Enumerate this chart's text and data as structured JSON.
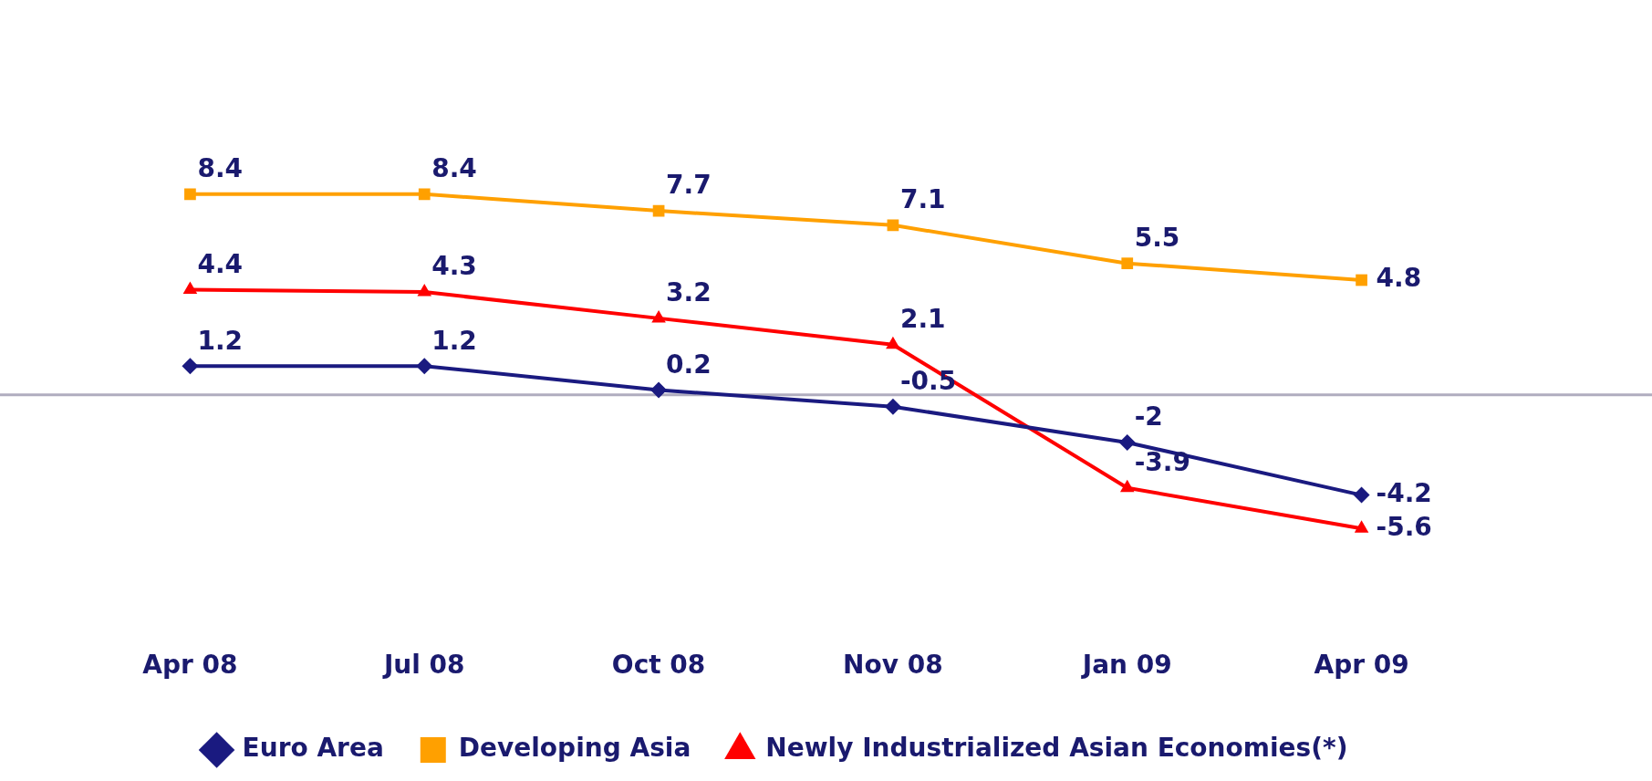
{
  "chart_data": {
    "type": "line",
    "categories": [
      "Apr 08",
      "Jul 08",
      "Oct 08",
      "Nov 08",
      "Jan 09",
      "Apr 09"
    ],
    "series": [
      {
        "name": "Euro Area",
        "color": "#1a1a80",
        "marker": "diamond",
        "values": [
          1.2,
          1.2,
          0.2,
          -0.5,
          -2,
          -4.2
        ]
      },
      {
        "name": "Developing Asia",
        "color": "#ffa000",
        "marker": "square",
        "values": [
          8.4,
          8.4,
          7.7,
          7.1,
          5.5,
          4.8
        ]
      },
      {
        "name": "Newly Industrialized Asian Economies(*)",
        "color": "#ff0000",
        "marker": "triangle",
        "values": [
          4.4,
          4.3,
          3.2,
          2.1,
          -3.9,
          -5.6
        ]
      }
    ],
    "ref_lines": [
      {
        "axis": "y",
        "value": 0,
        "color": "#b0adbf"
      }
    ],
    "data_labels": true,
    "grid": false,
    "legend": "bottom",
    "line_style": "solid"
  }
}
